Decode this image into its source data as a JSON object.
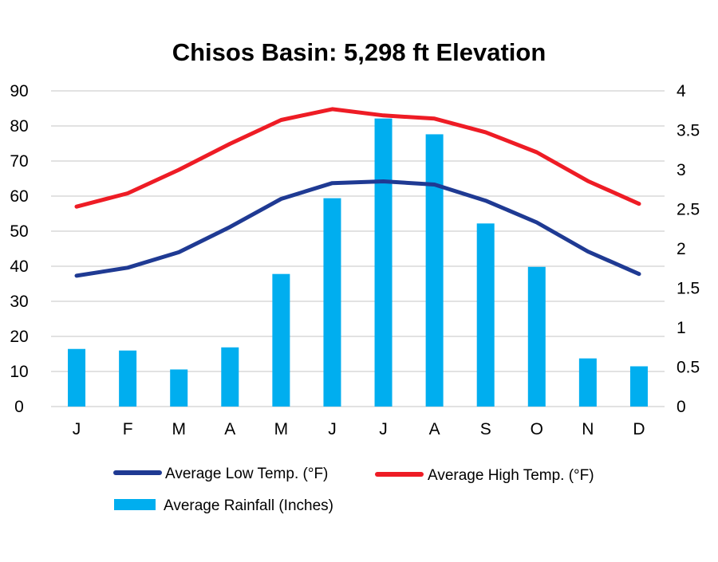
{
  "chart_data": {
    "type": "bar+line",
    "title": "Chisos Basin: 5,298 ft Elevation",
    "categories": [
      "J",
      "F",
      "M",
      "A",
      "M",
      "J",
      "J",
      "A",
      "S",
      "O",
      "N",
      "D"
    ],
    "y_left": {
      "label": "",
      "range": [
        0,
        90
      ],
      "ticks": [
        "0",
        "10",
        "20",
        "30",
        "40",
        "50",
        "60",
        "70",
        "80",
        "90"
      ]
    },
    "y_right": {
      "label": "",
      "range": [
        0,
        4
      ],
      "ticks": [
        "0",
        "0.5",
        "1",
        "1.5",
        "2",
        "2.5",
        "3",
        "3.5",
        "4"
      ]
    },
    "grid": true,
    "legend_position": "bottom",
    "series": [
      {
        "name": "Average Low Temp. (°F)",
        "type": "line",
        "axis": "left",
        "color": "#1f3a93",
        "values": [
          37.3,
          39.6,
          44,
          51.2,
          59.2,
          63.7,
          64.2,
          63.3,
          58.7,
          52.5,
          44.2,
          37.8
        ]
      },
      {
        "name": "Average High Temp. (°F)",
        "type": "line",
        "axis": "left",
        "color": "#ee1c25",
        "values": [
          57,
          60.8,
          67.5,
          74.9,
          81.7,
          84.8,
          83,
          82.1,
          78.2,
          72.5,
          64.3,
          57.8
        ]
      },
      {
        "name": "Average Rainfall (Inches)",
        "type": "bar",
        "axis": "right",
        "color": "#00aeef",
        "values": [
          0.73,
          0.71,
          0.47,
          0.75,
          1.68,
          2.64,
          3.65,
          3.45,
          2.32,
          1.77,
          0.61,
          0.51
        ]
      }
    ]
  }
}
